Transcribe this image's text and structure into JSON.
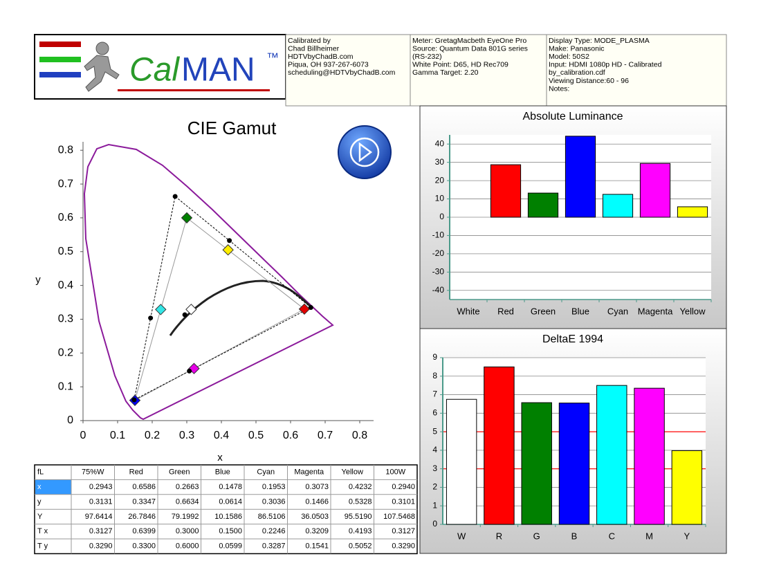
{
  "header": {
    "logo": {
      "cal": "Cal",
      "man": "MAN",
      "tm": "™"
    },
    "calibrated": [
      "Calibrated by",
      "Chad Billheimer",
      "HDTVbyChadB.com",
      "Piqua, OH 937-267-6073",
      "scheduling@HDTVbyChadB.com"
    ],
    "meter": [
      "Meter: GretagMacbeth EyeOne Pro",
      "Source: Quantum Data 801G series",
      "(RS-232)",
      "White Point: D65, HD Rec709",
      "Gamma Target: 2.20"
    ],
    "display": [
      "Display Type: MODE_PLASMA",
      "Make: Panasonic",
      "Model: 50S2",
      "Input: HDMI 1080p HD    -    Calibrated",
      "by_calibration.cdf",
      "Viewing Distance:60 - 96",
      "Notes:"
    ]
  },
  "table": {
    "header": [
      "fL",
      "75%W",
      "Red",
      "Green",
      "Blue",
      "Cyan",
      "Magenta",
      "Yellow",
      "100W"
    ],
    "rows": [
      {
        "label": "x",
        "values": [
          "0.2943",
          "0.6586",
          "0.2663",
          "0.1478",
          "0.1953",
          "0.3073",
          "0.4232",
          "0.2940"
        ]
      },
      {
        "label": "y",
        "values": [
          "0.3131",
          "0.3347",
          "0.6634",
          "0.0614",
          "0.3036",
          "0.1466",
          "0.5328",
          "0.3101"
        ]
      },
      {
        "label": "Y",
        "values": [
          "97.6414",
          "26.7846",
          "79.1992",
          "10.1586",
          "86.5106",
          "36.0503",
          "95.5190",
          "107.5468"
        ]
      },
      {
        "label": "T x",
        "values": [
          "0.3127",
          "0.6399",
          "0.3000",
          "0.1500",
          "0.2246",
          "0.3209",
          "0.4193",
          "0.3127"
        ]
      },
      {
        "label": "T y",
        "values": [
          "0.3290",
          "0.3300",
          "0.6000",
          "0.0599",
          "0.3287",
          "0.1541",
          "0.5052",
          "0.3290"
        ]
      }
    ]
  },
  "chart_data": [
    {
      "type": "scatter",
      "title": "CIE Gamut",
      "xlabel": "x",
      "ylabel": "y",
      "xlim": [
        0,
        0.84
      ],
      "ylim": [
        0,
        0.825
      ],
      "xticks": [
        0,
        0.1,
        0.2,
        0.3,
        0.4,
        0.5,
        0.6,
        0.7,
        0.8
      ],
      "yticks": [
        0,
        0.1,
        0.2,
        0.3,
        0.4,
        0.5,
        0.6,
        0.7,
        0.8
      ],
      "marker_colors": [
        "#ffffff",
        "#e00000",
        "#008000",
        "#0000ff",
        "#33e6e6",
        "#e600e6",
        "#ffee00"
      ]
    },
    {
      "type": "bar",
      "title": "Absolute Luminance",
      "categories": [
        "White",
        "Red",
        "Green",
        "Blue",
        "Cyan",
        "Magenta",
        "Yellow"
      ],
      "values": [
        0,
        28.7,
        13.2,
        44.3,
        12.5,
        29.4,
        5.7
      ],
      "colors": [
        "#ffffff",
        "#ff0000",
        "#008000",
        "#0000ff",
        "#00ffff",
        "#ff00ff",
        "#ffff00"
      ],
      "ylim": [
        -45,
        45
      ],
      "yticks": [
        -40,
        -30,
        -20,
        -10,
        0,
        10,
        20,
        30,
        40
      ],
      "grid": true
    },
    {
      "type": "bar",
      "title": "DeltaE 1994",
      "categories": [
        "W",
        "R",
        "G",
        "B",
        "C",
        "M",
        "Y"
      ],
      "values": [
        6.75,
        8.5,
        6.57,
        6.55,
        7.5,
        7.35,
        3.98
      ],
      "colors": [
        "#ffffff",
        "#ff0000",
        "#008000",
        "#0000ff",
        "#00ffff",
        "#ff00ff",
        "#ffff00"
      ],
      "ylim": [
        0,
        9
      ],
      "yticks": [
        0,
        1,
        2,
        3,
        4,
        5,
        6,
        7,
        8,
        9
      ],
      "grid": true,
      "threshold_lines": [
        3,
        5
      ],
      "threshold_color": "#ff0000"
    }
  ]
}
